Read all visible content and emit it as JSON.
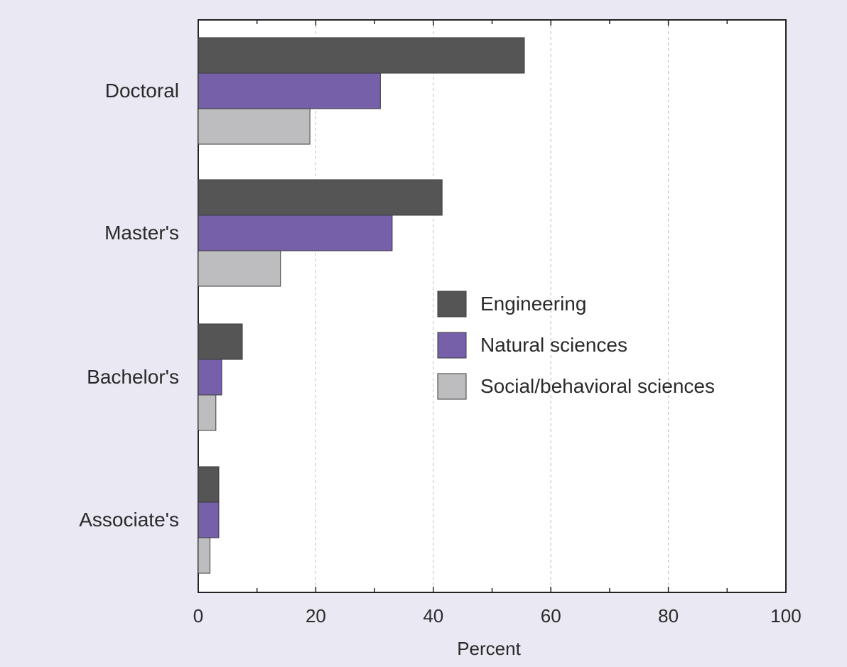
{
  "chart_data": {
    "type": "bar",
    "orientation": "horizontal",
    "categories": [
      "Doctoral",
      "Master's",
      "Bachelor's",
      "Associate's"
    ],
    "series": [
      {
        "name": "Engineering",
        "color": "#555555",
        "values": [
          55.5,
          41.5,
          7.5,
          3.5
        ]
      },
      {
        "name": "Natural sciences",
        "color": "#7660aa",
        "values": [
          31,
          33,
          4,
          3.5
        ]
      },
      {
        "name": "Social/behavioral sciences",
        "color": "#bdbdbf",
        "values": [
          19,
          14,
          3,
          2
        ]
      }
    ],
    "xlabel": "Percent",
    "xlim": [
      0,
      100
    ],
    "xticks": [
      0,
      20,
      40,
      60,
      80,
      100
    ],
    "grid": "vertical dashed",
    "legend_position": "center-right"
  }
}
